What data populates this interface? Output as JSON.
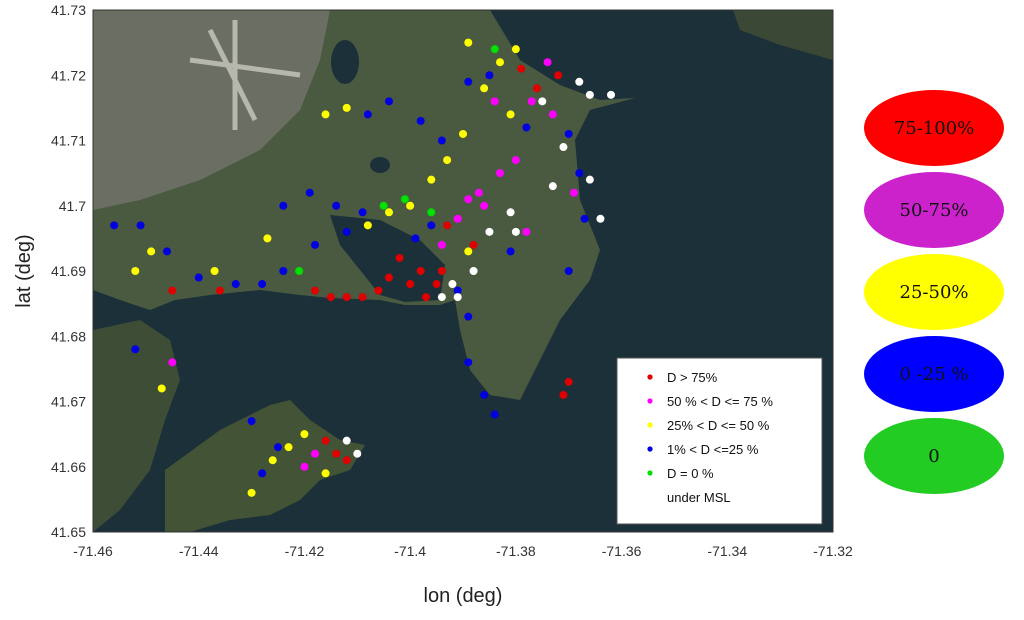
{
  "chart_data": {
    "type": "scatter",
    "xlabel": "lon (deg)",
    "ylabel": "lat (deg)",
    "xlim": [
      -71.46,
      -71.32
    ],
    "ylim": [
      41.65,
      41.73
    ],
    "xticks": [
      "-71.46",
      "-71.44",
      "-71.42",
      "-71.4",
      "-71.38",
      "-71.36",
      "-71.34",
      "-71.32"
    ],
    "yticks": [
      "41.73",
      "41.72",
      "41.71",
      "41.7",
      "41.69",
      "41.68",
      "41.67",
      "41.66",
      "41.65"
    ],
    "legend": {
      "placement": "bottom-right",
      "entries": [
        {
          "label": "D > 75%",
          "color": "#e00000"
        },
        {
          "label": "50 % < D <= 75 %",
          "color": "#ff00ff"
        },
        {
          "label": "25% < D <= 50 %",
          "color": "#ffff00"
        },
        {
          "label": "1% < D <=25 %",
          "color": "#0000e0"
        },
        {
          "label": "D = 0 %",
          "color": "#00e000"
        },
        {
          "label": "under MSL",
          "color": "#ffffff"
        }
      ]
    },
    "series": [
      {
        "name": "D > 75%",
        "color": "#e00000",
        "points": [
          [
            -71.4,
            41.688
          ],
          [
            -71.398,
            41.69
          ],
          [
            -71.402,
            41.692
          ],
          [
            -71.397,
            41.686
          ],
          [
            -71.404,
            41.689
          ],
          [
            -71.406,
            41.687
          ],
          [
            -71.409,
            41.686
          ],
          [
            -71.412,
            41.686
          ],
          [
            -71.415,
            41.686
          ],
          [
            -71.418,
            41.687
          ],
          [
            -71.395,
            41.688
          ],
          [
            -71.394,
            41.69
          ],
          [
            -71.372,
            41.72
          ],
          [
            -71.376,
            41.718
          ],
          [
            -71.379,
            41.721
          ],
          [
            -71.37,
            41.673
          ],
          [
            -71.371,
            41.671
          ],
          [
            -71.414,
            41.662
          ],
          [
            -71.412,
            41.661
          ],
          [
            -71.416,
            41.664
          ],
          [
            -71.388,
            41.694
          ],
          [
            -71.393,
            41.697
          ],
          [
            -71.445,
            41.687
          ],
          [
            -71.436,
            41.687
          ]
        ]
      },
      {
        "name": "50 % < D <= 75 %",
        "color": "#ff00ff",
        "points": [
          [
            -71.374,
            41.722
          ],
          [
            -71.377,
            41.716
          ],
          [
            -71.373,
            41.714
          ],
          [
            -71.391,
            41.698
          ],
          [
            -71.389,
            41.701
          ],
          [
            -71.386,
            41.7
          ],
          [
            -71.383,
            41.705
          ],
          [
            -71.38,
            41.707
          ],
          [
            -71.394,
            41.694
          ],
          [
            -71.418,
            41.662
          ],
          [
            -71.42,
            41.66
          ],
          [
            -71.384,
            41.716
          ],
          [
            -71.387,
            41.702
          ],
          [
            -71.445,
            41.676
          ],
          [
            -71.369,
            41.702
          ],
          [
            -71.378,
            41.696
          ]
        ]
      },
      {
        "name": "25% < D <= 50 %",
        "color": "#ffff00",
        "points": [
          [
            -71.383,
            41.722
          ],
          [
            -71.386,
            41.718
          ],
          [
            -71.38,
            41.724
          ],
          [
            -71.381,
            41.714
          ],
          [
            -71.39,
            41.711
          ],
          [
            -71.393,
            41.707
          ],
          [
            -71.396,
            41.704
          ],
          [
            -71.4,
            41.7
          ],
          [
            -71.404,
            41.699
          ],
          [
            -71.408,
            41.697
          ],
          [
            -71.42,
            41.665
          ],
          [
            -71.423,
            41.663
          ],
          [
            -71.416,
            41.659
          ],
          [
            -71.426,
            41.661
          ],
          [
            -71.412,
            41.715
          ],
          [
            -71.416,
            41.714
          ],
          [
            -71.437,
            41.69
          ],
          [
            -71.449,
            41.693
          ],
          [
            -71.452,
            41.69
          ],
          [
            -71.389,
            41.693
          ],
          [
            -71.389,
            41.725
          ],
          [
            -71.427,
            41.695
          ],
          [
            -71.447,
            41.672
          ],
          [
            -71.43,
            41.656
          ]
        ]
      },
      {
        "name": "1% < D <=25 %",
        "color": "#0000e0",
        "points": [
          [
            -71.385,
            41.72
          ],
          [
            -71.378,
            41.712
          ],
          [
            -71.37,
            41.711
          ],
          [
            -71.368,
            41.705
          ],
          [
            -71.367,
            41.698
          ],
          [
            -71.409,
            41.699
          ],
          [
            -71.412,
            41.696
          ],
          [
            -71.418,
            41.694
          ],
          [
            -71.424,
            41.69
          ],
          [
            -71.428,
            41.688
          ],
          [
            -71.433,
            41.688
          ],
          [
            -71.44,
            41.689
          ],
          [
            -71.446,
            41.693
          ],
          [
            -71.451,
            41.697
          ],
          [
            -71.456,
            41.697
          ],
          [
            -71.396,
            41.697
          ],
          [
            -71.399,
            41.695
          ],
          [
            -71.424,
            41.7
          ],
          [
            -71.419,
            41.702
          ],
          [
            -71.414,
            41.7
          ],
          [
            -71.386,
            41.671
          ],
          [
            -71.389,
            41.676
          ],
          [
            -71.384,
            41.668
          ],
          [
            -71.425,
            41.663
          ],
          [
            -71.428,
            41.659
          ],
          [
            -71.43,
            41.667
          ],
          [
            -71.404,
            41.716
          ],
          [
            -71.408,
            41.714
          ],
          [
            -71.394,
            41.71
          ],
          [
            -71.398,
            41.713
          ],
          [
            -71.389,
            41.683
          ],
          [
            -71.391,
            41.687
          ],
          [
            -71.37,
            41.69
          ],
          [
            -71.381,
            41.693
          ],
          [
            -71.452,
            41.678
          ],
          [
            -71.389,
            41.719
          ]
        ]
      },
      {
        "name": "D = 0 %",
        "color": "#00e000",
        "points": [
          [
            -71.405,
            41.7
          ],
          [
            -71.401,
            41.701
          ],
          [
            -71.421,
            41.69
          ],
          [
            -71.396,
            41.699
          ],
          [
            -71.384,
            41.724
          ]
        ]
      },
      {
        "name": "under MSL",
        "color": "#ffffff",
        "points": [
          [
            -71.366,
            41.717
          ],
          [
            -71.362,
            41.717
          ],
          [
            -71.368,
            41.719
          ],
          [
            -71.371,
            41.709
          ],
          [
            -71.373,
            41.703
          ],
          [
            -71.375,
            41.716
          ],
          [
            -71.392,
            41.688
          ],
          [
            -71.388,
            41.69
          ],
          [
            -71.385,
            41.696
          ],
          [
            -71.38,
            41.696
          ],
          [
            -71.391,
            41.686
          ],
          [
            -71.412,
            41.664
          ],
          [
            -71.41,
            41.662
          ],
          [
            -71.366,
            41.704
          ],
          [
            -71.364,
            41.698
          ],
          [
            -71.394,
            41.686
          ],
          [
            -71.381,
            41.699
          ]
        ]
      }
    ]
  },
  "category_ovals": [
    {
      "label": "75-100%",
      "color": "#ff0000"
    },
    {
      "label": "50-75%",
      "color": "#cc22cc"
    },
    {
      "label": "25-50%",
      "color": "#ffff00"
    },
    {
      "label": "0 -25 %",
      "color": "#0000ff"
    },
    {
      "label": "0",
      "color": "#22cc22"
    }
  ]
}
